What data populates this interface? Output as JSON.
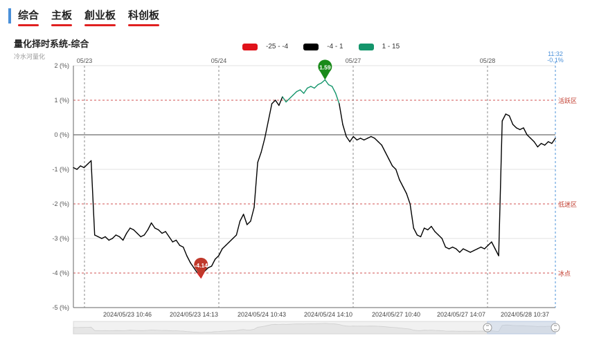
{
  "tabs": [
    {
      "label": "综合"
    },
    {
      "label": "主板"
    },
    {
      "label": "創业板"
    },
    {
      "label": "科创板"
    }
  ],
  "header": {
    "title": "量化择时系统-综合",
    "subtitle": "冷水河量化"
  },
  "legend": [
    {
      "label": "-25 - -4",
      "color": "#e0121a"
    },
    {
      "label": "-4 - 1",
      "color": "#000000"
    },
    {
      "label": "1 - 15",
      "color": "#14956b"
    }
  ],
  "chart_data": {
    "type": "line",
    "ylim": [
      -5,
      2
    ],
    "y_ticks": [
      "2 (%)",
      "1 (%)",
      "0 (%)",
      "-1 (%)",
      "-2 (%)",
      "-3 (%)",
      "-4 (%)",
      "-5 (%)"
    ],
    "y_tick_values": [
      2,
      1,
      0,
      -1,
      -2,
      -3,
      -4,
      -5
    ],
    "thresholds": [
      {
        "value": 1,
        "label": "活跃区"
      },
      {
        "value": -2,
        "label": "低迷区"
      },
      {
        "value": -4,
        "label": "冰点"
      }
    ],
    "day_labels": [
      "05/23",
      "05/24",
      "05/27",
      "05/28"
    ],
    "x_ticks": [
      "2024/05/23 10:46",
      "2024/05/23 14:13",
      "2024/05/24 10:43",
      "2024/05/24 14:10",
      "2024/05/27 10:40",
      "2024/05/27 14:07",
      "2024/05/28 10:37"
    ],
    "last_point": {
      "time": "11:32",
      "value": "-0.1%"
    },
    "max_marker": {
      "value": "1.59"
    },
    "min_marker": {
      "value": "-4.14"
    },
    "series": [
      {
        "values": [
          -0.95,
          -1.0,
          -0.9,
          -0.95,
          -0.85,
          -0.75,
          -2.9,
          -2.95,
          -3.0,
          -2.95,
          -3.05,
          -3.0,
          -2.9,
          -2.95,
          -3.05,
          -2.85,
          -2.7,
          -2.75,
          -2.85,
          -2.95,
          -2.9,
          -2.75,
          -2.55,
          -2.7,
          -2.75,
          -2.85,
          -2.8,
          -2.95,
          -3.1,
          -3.05,
          -3.2,
          -3.25,
          -3.5,
          -3.7,
          -3.85,
          -4.0,
          -4.14,
          -3.95,
          -3.85,
          -3.8,
          -3.6,
          -3.5,
          -3.3,
          -3.2,
          -3.1,
          -3.0,
          -2.9,
          -2.5,
          -2.3,
          -2.6,
          -2.5,
          -2.1,
          -0.8,
          -0.5,
          -0.1,
          0.4,
          0.9,
          1.0,
          0.85,
          1.1,
          0.95,
          1.05,
          1.15,
          1.25,
          1.3,
          1.2,
          1.35,
          1.4,
          1.35,
          1.45,
          1.5,
          1.59,
          1.45,
          1.4,
          1.2,
          0.9,
          0.3,
          -0.05,
          -0.2,
          -0.05,
          -0.15,
          -0.1,
          -0.15,
          -0.1,
          -0.05,
          -0.1,
          -0.2,
          -0.3,
          -0.5,
          -0.7,
          -0.9,
          -1.0,
          -1.3,
          -1.5,
          -1.7,
          -2.0,
          -2.7,
          -2.9,
          -2.95,
          -2.7,
          -2.75,
          -2.65,
          -2.8,
          -2.9,
          -3.0,
          -3.25,
          -3.3,
          -3.25,
          -3.3,
          -3.4,
          -3.3,
          -3.35,
          -3.4,
          -3.35,
          -3.3,
          -3.25,
          -3.3,
          -3.2,
          -3.1,
          -3.3,
          -3.5,
          0.4,
          0.6,
          0.55,
          0.3,
          0.2,
          0.15,
          0.2,
          0.0,
          -0.1,
          -0.2,
          -0.35,
          -0.25,
          -0.3,
          -0.2,
          -0.25,
          -0.1
        ]
      }
    ]
  }
}
